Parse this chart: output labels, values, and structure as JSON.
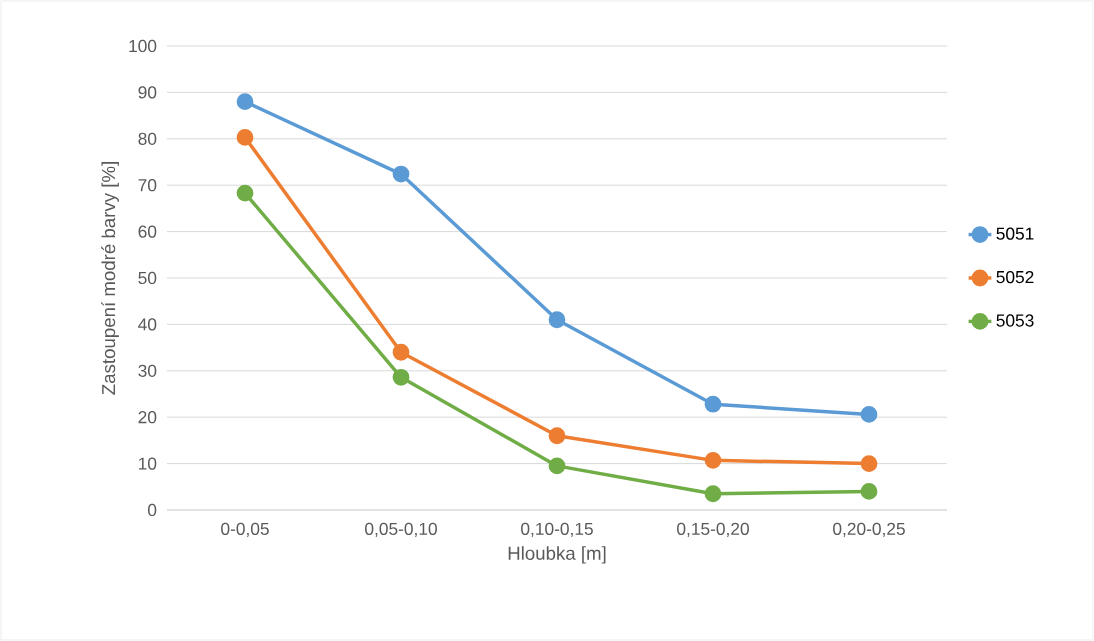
{
  "chart_data": {
    "type": "line",
    "xlabel": "Hloubka [m]",
    "ylabel": "Zastoupení modré barvy [%]",
    "categories": [
      "0-0,05",
      "0,05-0,10",
      "0,10-0,15",
      "0,15-0,20",
      "0,20-0,25"
    ],
    "series": [
      {
        "name": "5051",
        "color": "#5b9bd5",
        "values": [
          88,
          72.4,
          41,
          22.8,
          20.6
        ]
      },
      {
        "name": "5052",
        "color": "#ed7d31",
        "values": [
          80.3,
          34,
          16,
          10.7,
          10
        ]
      },
      {
        "name": "5053",
        "color": "#70ad47",
        "values": [
          68.3,
          28.6,
          9.5,
          3.5,
          4
        ]
      }
    ],
    "ylim": [
      0,
      100
    ],
    "yticks": [
      0,
      10,
      20,
      30,
      40,
      50,
      60,
      70,
      80,
      90,
      100
    ],
    "grid": "y",
    "legend": "right",
    "marker": "circle",
    "line_style": "solid"
  }
}
